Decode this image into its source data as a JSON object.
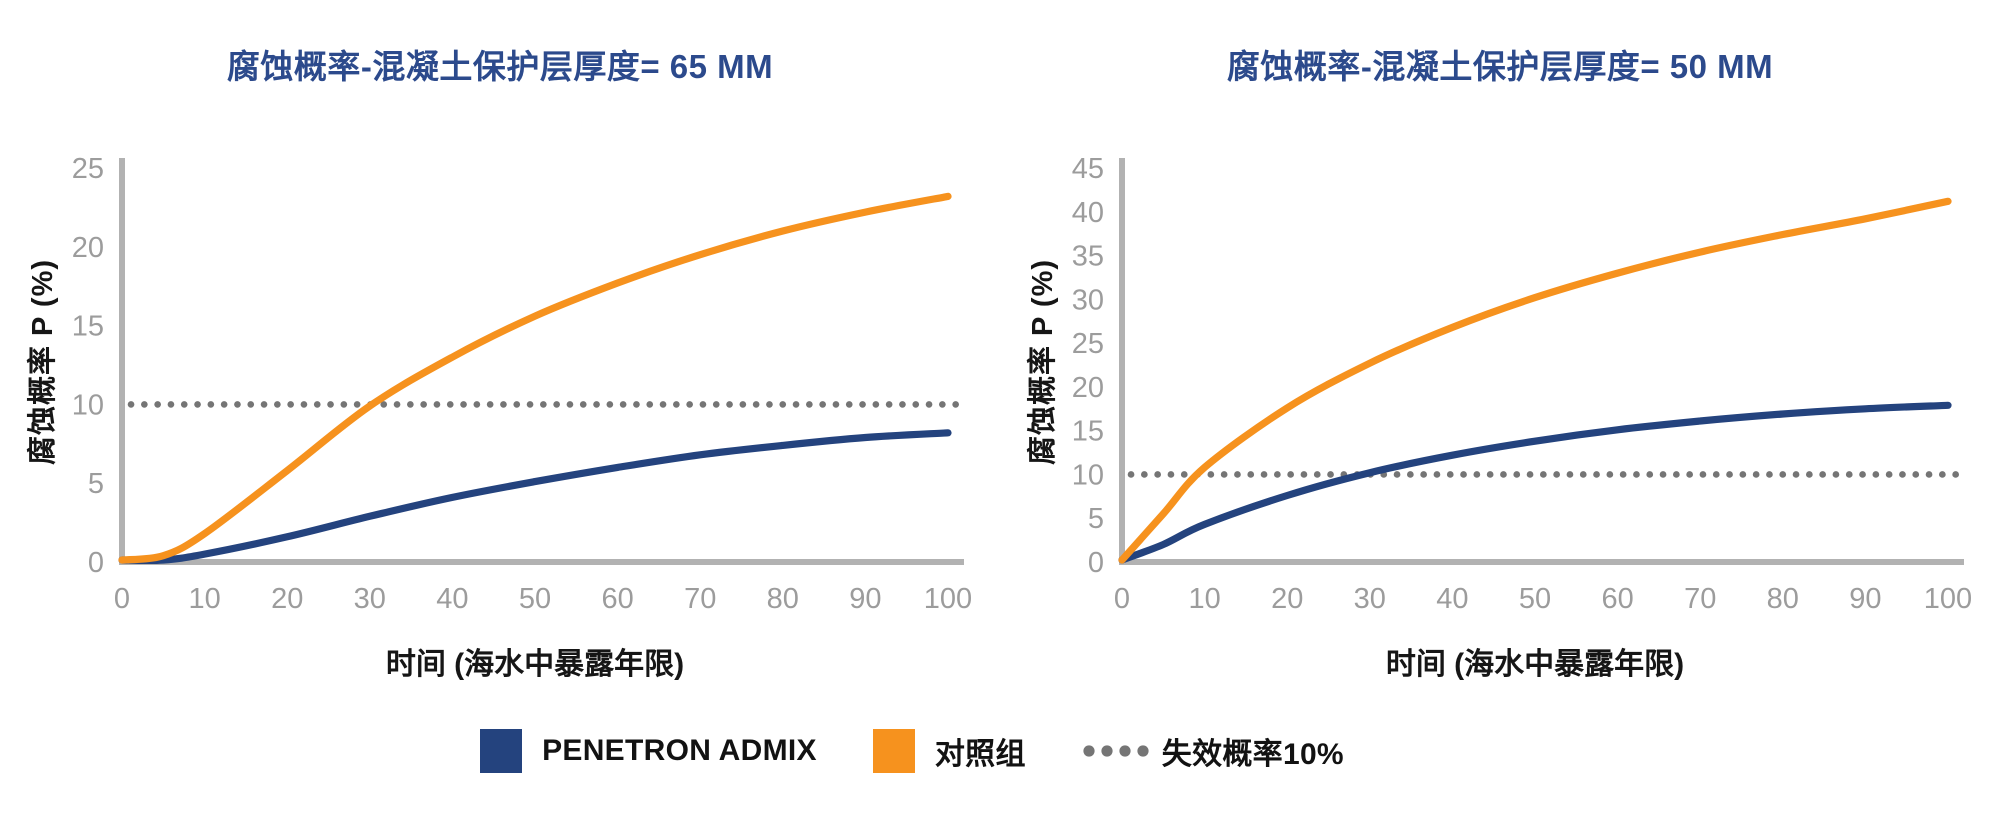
{
  "colors": {
    "admix_blue": "#24437E",
    "control_orange": "#F6921E",
    "title_blue": "#2C4A8C",
    "axis_gray": "#B2B2B2",
    "tick_gray": "#9C9C9C",
    "dot_gray": "#757575",
    "text_dark": "#161616",
    "background": "#FFFFFF"
  },
  "chart_data": [
    {
      "type": "line",
      "title": "腐蚀概率-混凝土保护层厚度= 65 MM",
      "xlabel": "时间 (海水中暴露年限)",
      "ylabel": "腐蚀概率 P (%)",
      "xlim": [
        0,
        100
      ],
      "ylim": [
        0,
        25
      ],
      "xtick_step": 10,
      "ytick_step": 5,
      "grid": false,
      "legend_position": "bottom",
      "x": [
        0,
        5,
        10,
        20,
        30,
        40,
        50,
        60,
        70,
        80,
        90,
        100
      ],
      "series": [
        {
          "name": "PENETRON ADMIX",
          "color_key": "admix_blue",
          "values": [
            0,
            0.1,
            0.5,
            1.6,
            2.9,
            4.1,
            5.1,
            6.0,
            6.8,
            7.4,
            7.9,
            8.2
          ]
        },
        {
          "name": "对照组",
          "color_key": "control_orange",
          "values": [
            0,
            0.4,
            1.8,
            5.8,
            9.9,
            13.0,
            15.6,
            17.7,
            19.5,
            21.0,
            22.2,
            23.2
          ]
        }
      ],
      "threshold": {
        "label": "失效概率10%",
        "value": 10,
        "style": "dotted"
      }
    },
    {
      "type": "line",
      "title": "腐蚀概率-混凝土保护层厚度= 50 MM",
      "xlabel": "时间 (海水中暴露年限)",
      "ylabel": "腐蚀概率 P (%)",
      "xlim": [
        0,
        100
      ],
      "ylim": [
        0,
        45
      ],
      "xtick_step": 10,
      "ytick_step": 5,
      "grid": false,
      "legend_position": "bottom",
      "x": [
        0,
        5,
        10,
        20,
        30,
        40,
        50,
        60,
        70,
        80,
        90,
        100
      ],
      "series": [
        {
          "name": "PENETRON ADMIX",
          "color_key": "admix_blue",
          "values": [
            0,
            2.0,
            4.3,
            7.6,
            10.2,
            12.2,
            13.8,
            15.1,
            16.1,
            16.9,
            17.5,
            17.9
          ]
        },
        {
          "name": "对照组",
          "color_key": "control_orange",
          "values": [
            0,
            5.5,
            10.8,
            17.6,
            22.7,
            26.8,
            30.2,
            33.0,
            35.4,
            37.4,
            39.2,
            41.2
          ]
        }
      ],
      "threshold": {
        "label": "失效概率10%",
        "value": 10,
        "style": "dotted"
      }
    }
  ],
  "legend": {
    "items": [
      {
        "label": "PENETRON ADMIX",
        "swatch": "square",
        "color_key": "admix_blue"
      },
      {
        "label": "对照组",
        "swatch": "square",
        "color_key": "control_orange"
      },
      {
        "label": "失效概率10%",
        "swatch": "dots",
        "color_key": "dot_gray"
      }
    ]
  }
}
